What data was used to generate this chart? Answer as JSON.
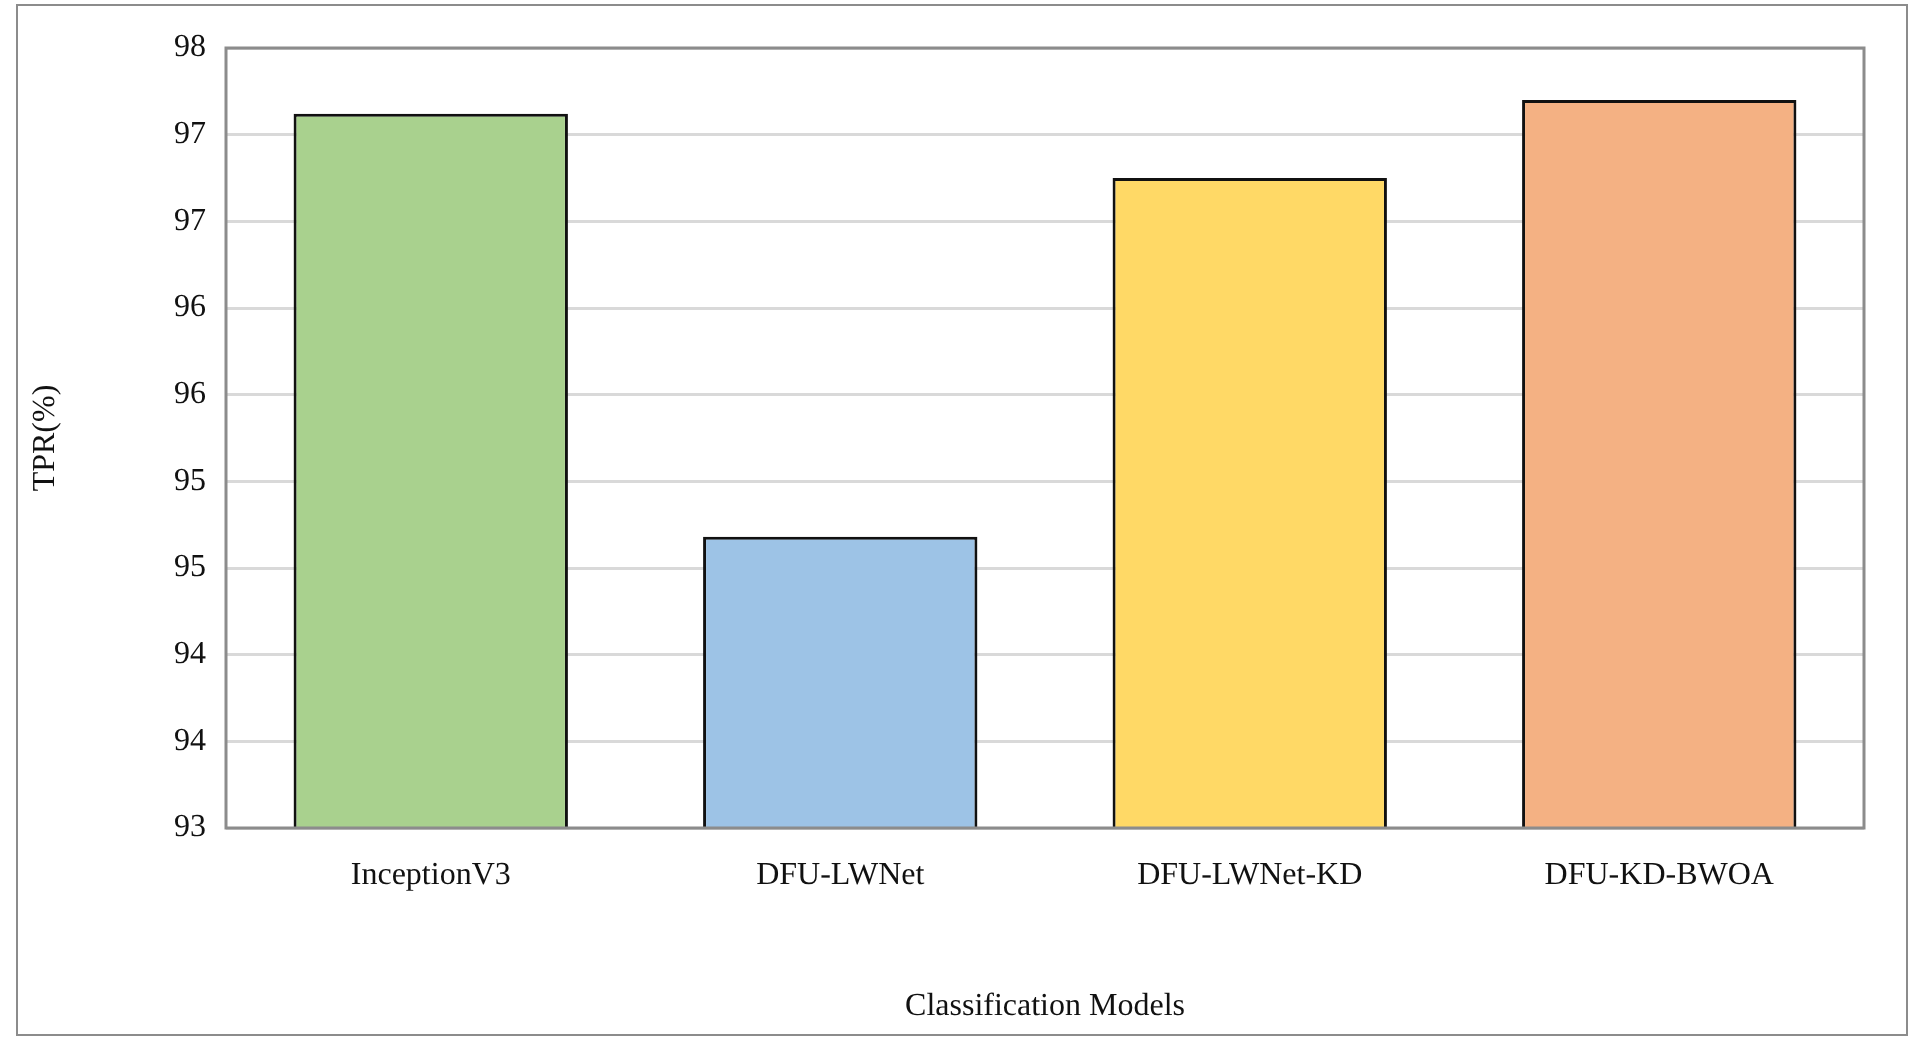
{
  "chart_data": {
    "type": "bar",
    "xlabel": "Classification Models",
    "ylabel": "TPR(%)",
    "categories": [
      "InceptionV3",
      "DFU-LWNet",
      "DFU-LWNet-KD",
      "DFU-KD-BWOA"
    ],
    "values": [
      97.12,
      94.68,
      96.75,
      97.2
    ],
    "colors": [
      "#a9d18e",
      "#9dc3e6",
      "#ffd966",
      "#f4b183"
    ],
    "ylim": [
      93,
      97.5
    ],
    "yticks": [
      93,
      {
        "value": 93.5,
        "label": "94"
      },
      94,
      {
        "value": 94.5,
        "label": "95"
      },
      95,
      {
        "value": 95.5,
        "label": "96"
      },
      96,
      {
        "value": 96.5,
        "label": "97"
      },
      97,
      {
        "value": 97.5,
        "label": "98"
      }
    ],
    "grid": "y",
    "legend": false
  }
}
